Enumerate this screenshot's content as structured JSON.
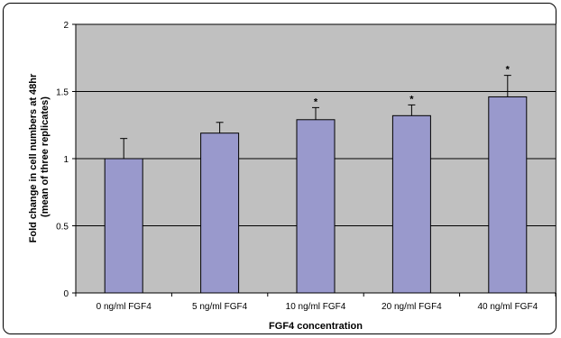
{
  "chart_data": {
    "type": "bar",
    "title": "",
    "xlabel": "FGF4 concentration",
    "ylabel_line1": "Fold change in cell numbers at 48hr",
    "ylabel_line2": "(mean of three replicates)",
    "categories": [
      "0 ng/ml FGF4",
      "5 ng/ml FGF4",
      "10 ng/ml FGF4",
      "20 ng/ml FGF4",
      "40 ng/ml FGF4"
    ],
    "values": [
      1.0,
      1.19,
      1.29,
      1.32,
      1.46
    ],
    "error_upper": [
      0.15,
      0.08,
      0.09,
      0.08,
      0.16
    ],
    "significance": [
      "",
      "",
      "*",
      "*",
      "*"
    ],
    "ylim": [
      0,
      2
    ],
    "yticks": [
      0,
      0.5,
      1,
      1.5,
      2
    ],
    "ytick_labels": [
      "0",
      "0.5",
      "1",
      "1.5",
      "2"
    ],
    "grid": true,
    "colors": {
      "plot_background": "#c0c0c0",
      "bar_fill": "#9999cc",
      "bar_stroke": "#000000",
      "gridline": "#000000"
    }
  }
}
